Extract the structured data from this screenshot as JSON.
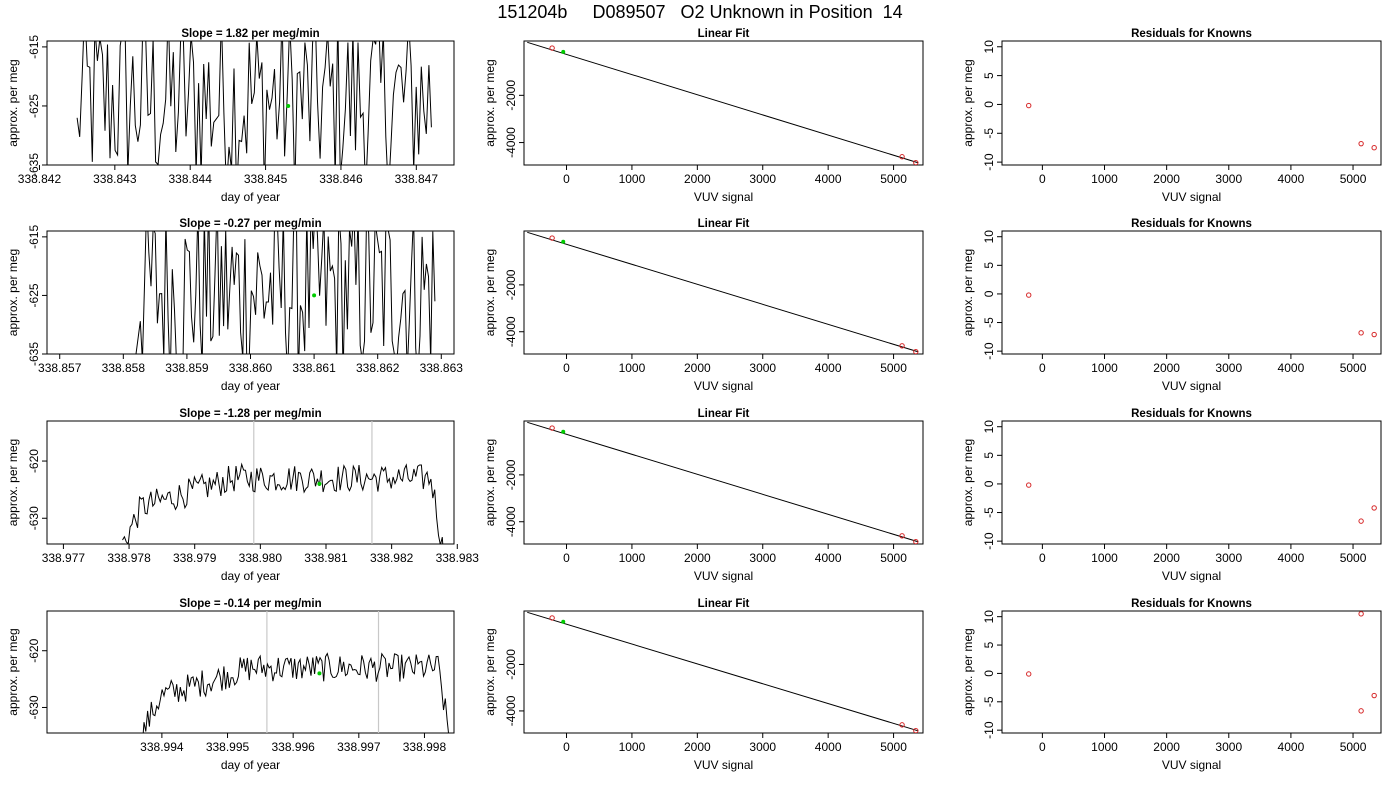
{
  "title": "151204b     D089507   O2 Unknown in Position  14",
  "colors": {
    "line": "#000000",
    "known": "#d62728",
    "unknown": "#00cc00",
    "vline": "#c8c8c8"
  },
  "chart_data": [
    {
      "type": "line",
      "title": "Slope =  1.82  per meg/min",
      "xlabel": "day of year",
      "ylabel": "approx. per meg",
      "xlim": [
        338.8421,
        338.8475
      ],
      "ylim": [
        -635,
        -614
      ],
      "xticks": [
        338.842,
        338.843,
        338.844,
        338.845,
        338.846,
        338.847
      ],
      "xtick_labels": [
        "338.842",
        "338.843",
        "338.844",
        "338.845",
        "338.846",
        "338.847"
      ],
      "yticks": [
        -635,
        -625,
        -615
      ],
      "ytick_labels": [
        "-635",
        "-625",
        "-615"
      ],
      "trace_style": "noisy",
      "trace_x": [
        338.8425,
        338.8472
      ],
      "trace_start": -627,
      "marker": {
        "x": 338.8453,
        "y": -625
      },
      "vlines": []
    },
    {
      "type": "line",
      "title": "Slope =  -0.27  per meg/min",
      "xlabel": "day of year",
      "ylabel": "approx. per meg",
      "xlim": [
        338.8568,
        338.8632
      ],
      "ylim": [
        -635,
        -614
      ],
      "xticks": [
        338.857,
        338.858,
        338.859,
        338.86,
        338.861,
        338.862,
        338.863
      ],
      "xtick_labels": [
        "338.857",
        "338.858",
        "338.859",
        "338.860",
        "338.861",
        "338.862",
        "338.863"
      ],
      "yticks": [
        -635,
        -625,
        -615
      ],
      "ytick_labels": [
        "-635",
        "-625",
        "-615"
      ],
      "trace_style": "noisy",
      "trace_x": [
        338.8582,
        338.8629
      ],
      "trace_start": -635,
      "marker": {
        "x": 338.861,
        "y": -625
      },
      "vlines": []
    },
    {
      "type": "line",
      "title": "Slope =  -1.28  per meg/min",
      "xlabel": "day of year",
      "ylabel": "approx. per meg",
      "xlim": [
        338.97675,
        338.98295
      ],
      "ylim": [
        -634.5,
        -613
      ],
      "xticks": [
        338.977,
        338.978,
        338.979,
        338.98,
        338.981,
        338.982,
        338.983
      ],
      "xtick_labels": [
        "338.977",
        "338.978",
        "338.979",
        "338.980",
        "338.981",
        "338.982",
        "338.983"
      ],
      "yticks": [
        -630,
        -620
      ],
      "ytick_labels": [
        "-630",
        "-620"
      ],
      "trace_style": "smooth",
      "trace_x": [
        338.9779,
        338.9828
      ],
      "trace_start": -634.5,
      "marker": {
        "x": 338.9809,
        "y": -624
      },
      "vlines": [
        338.9799,
        338.9817
      ]
    },
    {
      "type": "line",
      "title": "Slope =  -0.14  per meg/min",
      "xlabel": "day of year",
      "ylabel": "approx. per meg",
      "xlim": [
        338.99225,
        338.99845
      ],
      "ylim": [
        -634.5,
        -613
      ],
      "xticks": [
        338.994,
        338.995,
        338.996,
        338.997,
        338.998
      ],
      "xtick_labels": [
        "338.994",
        "338.995",
        "338.996",
        "338.997",
        "338.998"
      ],
      "yticks": [
        -630,
        -620
      ],
      "ytick_labels": [
        "-630",
        "-620"
      ],
      "trace_style": "smooth",
      "trace_x": [
        338.9937,
        338.9984
      ],
      "trace_start": -634.5,
      "marker": {
        "x": 338.9964,
        "y": -624
      },
      "vlines": [
        338.9956,
        338.9973
      ]
    },
    {
      "type": "scatter",
      "title": "Linear Fit",
      "xlabel": "VUV signal",
      "ylabel": "approx. per meg",
      "xlim": [
        -650,
        5450
      ],
      "ylim": [
        -4950,
        300
      ],
      "xticks": [
        0,
        1000,
        2000,
        3000,
        4000,
        5000
      ],
      "xtick_labels": [
        "0",
        "1000",
        "2000",
        "3000",
        "4000",
        "5000"
      ],
      "yticks": [
        -4000,
        -2000
      ],
      "ytick_labels": [
        "-4000",
        "-2000"
      ],
      "fit": {
        "x": [
          -600,
          5380
        ],
        "y": [
          244,
          -4861
        ]
      },
      "knowns": [
        {
          "x": -220,
          "y": 0
        },
        {
          "x": 5130,
          "y": -4600
        },
        {
          "x": 5340,
          "y": -4850
        }
      ],
      "unknown": [
        {
          "x": -50,
          "y": -160
        }
      ]
    },
    {
      "type": "scatter",
      "title": "Linear Fit",
      "xlabel": "VUV signal",
      "ylabel": "approx. per meg",
      "xlim": [
        -650,
        5450
      ],
      "ylim": [
        -4950,
        300
      ],
      "xticks": [
        0,
        1000,
        2000,
        3000,
        4000,
        5000
      ],
      "xtick_labels": [
        "0",
        "1000",
        "2000",
        "3000",
        "4000",
        "5000"
      ],
      "yticks": [
        -4000,
        -2000
      ],
      "ytick_labels": [
        "-4000",
        "-2000"
      ],
      "fit": {
        "x": [
          -600,
          5380
        ],
        "y": [
          244,
          -4861
        ]
      },
      "knowns": [
        {
          "x": -220,
          "y": 0
        },
        {
          "x": 5130,
          "y": -4600
        },
        {
          "x": 5340,
          "y": -4850
        }
      ],
      "unknown": [
        {
          "x": -50,
          "y": -160
        }
      ]
    },
    {
      "type": "scatter",
      "title": "Linear Fit",
      "xlabel": "VUV signal",
      "ylabel": "approx. per meg",
      "xlim": [
        -650,
        5450
      ],
      "ylim": [
        -4950,
        300
      ],
      "xticks": [
        0,
        1000,
        2000,
        3000,
        4000,
        5000
      ],
      "xtick_labels": [
        "0",
        "1000",
        "2000",
        "3000",
        "4000",
        "5000"
      ],
      "yticks": [
        -4000,
        -2000
      ],
      "ytick_labels": [
        "-4000",
        "-2000"
      ],
      "fit": {
        "x": [
          -600,
          5380
        ],
        "y": [
          244,
          -4861
        ]
      },
      "knowns": [
        {
          "x": -220,
          "y": 0
        },
        {
          "x": 5130,
          "y": -4600
        },
        {
          "x": 5340,
          "y": -4850
        }
      ],
      "unknown": [
        {
          "x": -50,
          "y": -160
        }
      ]
    },
    {
      "type": "scatter",
      "title": "Linear Fit",
      "xlabel": "VUV signal",
      "ylabel": "approx. per meg",
      "xlim": [
        -650,
        5450
      ],
      "ylim": [
        -4950,
        300
      ],
      "xticks": [
        0,
        1000,
        2000,
        3000,
        4000,
        5000
      ],
      "xtick_labels": [
        "0",
        "1000",
        "2000",
        "3000",
        "4000",
        "5000"
      ],
      "yticks": [
        -4000,
        -2000
      ],
      "ytick_labels": [
        "-4000",
        "-2000"
      ],
      "fit": {
        "x": [
          -600,
          5380
        ],
        "y": [
          244,
          -4861
        ]
      },
      "knowns": [
        {
          "x": -220,
          "y": 0
        },
        {
          "x": 5130,
          "y": -4600
        },
        {
          "x": 5340,
          "y": -4850
        }
      ],
      "unknown": [
        {
          "x": -50,
          "y": -160
        }
      ]
    },
    {
      "type": "scatter",
      "title": "Residuals for Knowns",
      "xlabel": "VUV signal",
      "ylabel": "approx. per meg",
      "xlim": [
        -650,
        5450
      ],
      "ylim": [
        -10.5,
        11
      ],
      "xticks": [
        0,
        1000,
        2000,
        3000,
        4000,
        5000
      ],
      "xtick_labels": [
        "0",
        "1000",
        "2000",
        "3000",
        "4000",
        "5000"
      ],
      "yticks": [
        -10,
        -5,
        0,
        5,
        10
      ],
      "ytick_labels": [
        "-10",
        "-5",
        "0",
        "5",
        "10"
      ],
      "points": [
        {
          "x": -220,
          "y": -0.2
        },
        {
          "x": 5130,
          "y": -6.8
        },
        {
          "x": 5340,
          "y": -7.5
        }
      ]
    },
    {
      "type": "scatter",
      "title": "Residuals for Knowns",
      "xlabel": "VUV signal",
      "ylabel": "approx. per meg",
      "xlim": [
        -650,
        5450
      ],
      "ylim": [
        -10.5,
        11
      ],
      "xticks": [
        0,
        1000,
        2000,
        3000,
        4000,
        5000
      ],
      "xtick_labels": [
        "0",
        "1000",
        "2000",
        "3000",
        "4000",
        "5000"
      ],
      "yticks": [
        -10,
        -5,
        0,
        5,
        10
      ],
      "ytick_labels": [
        "-10",
        "-5",
        "0",
        "5",
        "10"
      ],
      "points": [
        {
          "x": -220,
          "y": -0.2
        },
        {
          "x": 5130,
          "y": -6.8
        },
        {
          "x": 5340,
          "y": -7.1
        }
      ]
    },
    {
      "type": "scatter",
      "title": "Residuals for Knowns",
      "xlabel": "VUV signal",
      "ylabel": "approx. per meg",
      "xlim": [
        -650,
        5450
      ],
      "ylim": [
        -10.5,
        11
      ],
      "xticks": [
        0,
        1000,
        2000,
        3000,
        4000,
        5000
      ],
      "xtick_labels": [
        "0",
        "1000",
        "2000",
        "3000",
        "4000",
        "5000"
      ],
      "yticks": [
        -10,
        -5,
        0,
        5,
        10
      ],
      "ytick_labels": [
        "-10",
        "-5",
        "0",
        "5",
        "10"
      ],
      "points": [
        {
          "x": -220,
          "y": -0.2
        },
        {
          "x": 5130,
          "y": -6.5
        },
        {
          "x": 5340,
          "y": -4.2
        }
      ]
    },
    {
      "type": "scatter",
      "title": "Residuals for Knowns",
      "xlabel": "VUV signal",
      "ylabel": "approx. per meg",
      "xlim": [
        -650,
        5450
      ],
      "ylim": [
        -10.5,
        11
      ],
      "xticks": [
        0,
        1000,
        2000,
        3000,
        4000,
        5000
      ],
      "xtick_labels": [
        "0",
        "1000",
        "2000",
        "3000",
        "4000",
        "5000"
      ],
      "yticks": [
        -10,
        -5,
        0,
        5,
        10
      ],
      "ytick_labels": [
        "-10",
        "-5",
        "0",
        "5",
        "10"
      ],
      "points": [
        {
          "x": -220,
          "y": -0.1
        },
        {
          "x": 5130,
          "y": 10.5
        },
        {
          "x": 5130,
          "y": -6.6
        },
        {
          "x": 5340,
          "y": -3.9
        }
      ]
    }
  ]
}
